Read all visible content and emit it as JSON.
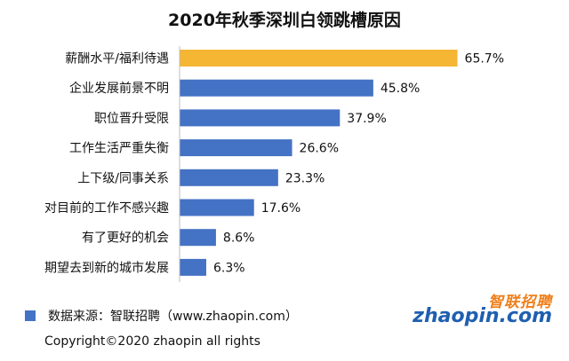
{
  "chart_data": {
    "type": "bar",
    "orientation": "horizontal",
    "title": "2020年秋季深圳白领跳槽原因",
    "categories": [
      "薪酬水平/福利待遇",
      "企业发展前景不明",
      "职位晋升受限",
      "工作生活严重失衡",
      "上下级/同事关系",
      "对目前的工作不感兴趣",
      "有了更好的机会",
      "期望去到新的城市发展"
    ],
    "values": [
      65.7,
      45.8,
      37.9,
      26.6,
      23.3,
      17.6,
      8.6,
      6.3
    ],
    "data_labels": [
      "65.7%",
      "45.8%",
      "37.9%",
      "26.6%",
      "23.3%",
      "17.6%",
      "8.6%",
      "6.3%"
    ],
    "colors": {
      "highlight": "#f5b634",
      "default": "#4472c4"
    },
    "highlight_index": 0,
    "xlim": [
      0,
      70
    ],
    "grid": false
  },
  "footer": {
    "source": "数据来源：智联招聘（www.zhaopin.com）",
    "copyright": "Copyright©2020 zhaopin all rights"
  },
  "logo": {
    "top_text": "智联招聘",
    "bottom_text": "zhaopin.com"
  }
}
